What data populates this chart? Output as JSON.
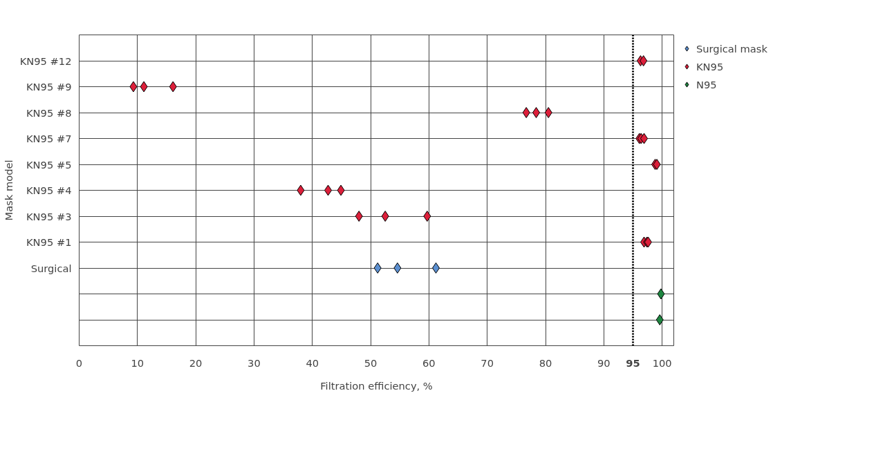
{
  "chart_data": {
    "type": "scatter",
    "orientation": "horizontal",
    "xlabel": "Filtration efficiency, %",
    "ylabel": "Mask model",
    "categories": [
      "KN95 #12",
      "KN95 #9",
      "KN95 #8",
      "KN95 #7",
      "KN95 #5",
      "KN95 #4",
      "KN95 #3",
      "KN95 #1",
      "Surgical",
      null,
      null
    ],
    "series": [
      {
        "name": "Surgical mask",
        "color": "#5b8fd0",
        "values": [
          null,
          null,
          null,
          null,
          null,
          null,
          null,
          null,
          51.2,
          null,
          null
        ]
      },
      {
        "color": "#5b8fd0",
        "values": [
          null,
          null,
          null,
          null,
          null,
          null,
          null,
          null,
          54.6,
          null,
          null
        ]
      },
      {
        "color": "#5b8fd0",
        "values": [
          null,
          null,
          null,
          null,
          null,
          null,
          null,
          null,
          61.2,
          null,
          null
        ]
      },
      {
        "name": "KN95",
        "color": "#dc1f3a",
        "values": [
          96.3,
          9.3,
          76.7,
          96.1,
          98.8,
          38.0,
          48.0,
          96.9,
          null,
          null,
          null
        ]
      },
      {
        "color": "#dc1f3a",
        "values": [
          96.8,
          11.1,
          78.4,
          96.4,
          99.1,
          42.7,
          52.5,
          97.4,
          null,
          null,
          null
        ]
      },
      {
        "color": "#dc1f3a",
        "values": [
          null,
          16.1,
          80.5,
          96.9,
          null,
          44.9,
          59.7,
          97.6,
          null,
          null,
          null
        ]
      },
      {
        "name": "N95",
        "color": "#1e8540",
        "values": [
          null,
          null,
          null,
          null,
          null,
          null,
          null,
          null,
          null,
          99.8,
          99.6
        ]
      }
    ],
    "xlim": [
      0,
      102
    ],
    "xticks": [
      0,
      10,
      20,
      30,
      40,
      50,
      60,
      70,
      80,
      90,
      100
    ],
    "ref_lines": [
      {
        "axis": "x",
        "value": 95,
        "label": "95",
        "line_style": "dotted",
        "color": "#000000"
      }
    ],
    "grid": true,
    "legend": "top right",
    "marker": "diamond"
  }
}
